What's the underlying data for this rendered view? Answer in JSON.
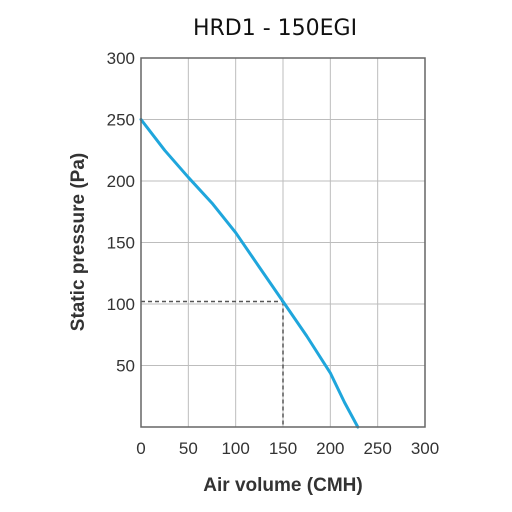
{
  "chart_data": {
    "type": "line",
    "title": "HRD1 - 150EGI",
    "xlabel": "Air volume (CMH)",
    "ylabel": "Static pressure (Pa)",
    "xlim": [
      0,
      300
    ],
    "ylim": [
      0,
      300
    ],
    "x_ticks": [
      "0",
      "50",
      "100",
      "150",
      "200",
      "250",
      "300"
    ],
    "y_ticks": [
      "50",
      "100",
      "150",
      "200",
      "250",
      "300"
    ],
    "grid": true,
    "series": [
      {
        "color": "#1fa6dc",
        "points": [
          [
            0,
            250
          ],
          [
            25,
            225
          ],
          [
            50,
            203
          ],
          [
            75,
            182
          ],
          [
            100,
            158
          ],
          [
            125,
            130
          ],
          [
            150,
            102
          ],
          [
            175,
            74
          ],
          [
            200,
            44
          ],
          [
            215,
            20
          ],
          [
            229,
            0
          ]
        ]
      }
    ],
    "operating_point": {
      "x": 150,
      "y": 102,
      "color": "#555555"
    }
  }
}
